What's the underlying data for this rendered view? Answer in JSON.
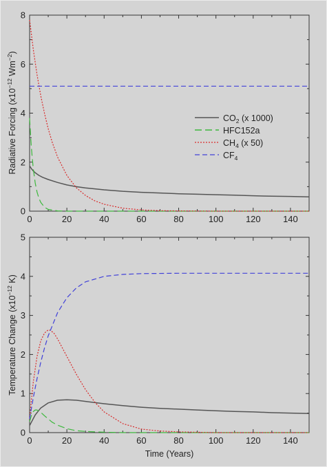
{
  "colors": {
    "background": "#d4d4d4",
    "co2": "#555555",
    "hfc152a": "#3cb83c",
    "ch4": "#d92a2a",
    "cf4": "#4040d8"
  },
  "legend": {
    "co2": {
      "main": "CO",
      "sub": "2",
      "tail": " (x 1000)"
    },
    "hfc152a": {
      "main": "HFC152a",
      "sub": "",
      "tail": ""
    },
    "ch4": {
      "main": "CH",
      "sub": "4",
      "tail": " (x 50)"
    },
    "cf4": {
      "main": "CF",
      "sub": "4",
      "tail": ""
    }
  },
  "chart_data": [
    {
      "type": "line",
      "ylabel_prefix": "Radiative Forcing (x10",
      "ylabel_exp1": "−12",
      "ylabel_mid": " Wm",
      "ylabel_exp2": "−2",
      "ylabel_suffix": ")",
      "xlabel": "",
      "xlim": [
        0,
        150
      ],
      "ylim": [
        0,
        8
      ],
      "xticks": [
        "0",
        "20",
        "40",
        "60",
        "80",
        "100",
        "120",
        "140"
      ],
      "yticks": [
        "0",
        "2",
        "4",
        "6",
        "8"
      ],
      "legend_position": "middle-right",
      "series": [
        {
          "key": "co2",
          "name": "CO2 (x 1000)",
          "dash": "none",
          "x": [
            0,
            1,
            2,
            3,
            5,
            7,
            10,
            15,
            20,
            25,
            30,
            40,
            50,
            60,
            70,
            80,
            90,
            100,
            110,
            120,
            130,
            140,
            150
          ],
          "y": [
            1.85,
            1.73,
            1.64,
            1.57,
            1.46,
            1.38,
            1.29,
            1.17,
            1.07,
            1.0,
            0.95,
            0.87,
            0.81,
            0.77,
            0.74,
            0.71,
            0.69,
            0.67,
            0.65,
            0.63,
            0.61,
            0.6,
            0.58
          ]
        },
        {
          "key": "hfc152a",
          "name": "HFC152a",
          "dash": "10,5",
          "x": [
            0,
            0.5,
            1,
            1.5,
            2,
            3,
            4,
            5,
            6,
            8,
            10,
            15,
            20,
            40,
            60,
            80,
            100,
            150
          ],
          "y": [
            3.8,
            3.1,
            2.55,
            2.1,
            1.72,
            1.16,
            0.78,
            0.53,
            0.36,
            0.16,
            0.07,
            0.01,
            0.0,
            0.0,
            0.0,
            0.0,
            0.0,
            0.0
          ]
        },
        {
          "key": "ch4",
          "name": "CH4 (x 50)",
          "dash": "2,2",
          "x": [
            0,
            2,
            4,
            6,
            8,
            10,
            12,
            15,
            20,
            25,
            30,
            35,
            40,
            50,
            60,
            70,
            80,
            100,
            120,
            150
          ],
          "y": [
            7.8,
            6.59,
            5.57,
            4.71,
            3.98,
            3.36,
            2.84,
            2.21,
            1.46,
            0.96,
            0.64,
            0.42,
            0.28,
            0.12,
            0.05,
            0.02,
            0.01,
            0.0,
            0.0,
            0.0
          ]
        },
        {
          "key": "cf4",
          "name": "CF4",
          "dash": "7,4",
          "x": [
            0,
            150
          ],
          "y": [
            5.1,
            5.1
          ]
        }
      ]
    },
    {
      "type": "line",
      "ylabel_prefix": "Temperature Change (x10",
      "ylabel_exp1": "−12",
      "ylabel_mid": " K",
      "ylabel_exp2": "",
      "ylabel_suffix": ")",
      "xlabel": "Time (Years)",
      "xlim": [
        0,
        150
      ],
      "ylim": [
        0,
        5
      ],
      "xticks": [
        "0",
        "20",
        "40",
        "60",
        "80",
        "100",
        "120",
        "140"
      ],
      "yticks": [
        "0",
        "1",
        "2",
        "3",
        "4",
        "5"
      ],
      "series": [
        {
          "key": "co2",
          "dash": "none",
          "x": [
            0,
            3,
            6,
            10,
            15,
            20,
            25,
            30,
            40,
            50,
            60,
            70,
            80,
            90,
            100,
            110,
            120,
            130,
            140,
            150
          ],
          "y": [
            0.18,
            0.45,
            0.63,
            0.76,
            0.83,
            0.84,
            0.83,
            0.8,
            0.74,
            0.69,
            0.65,
            0.62,
            0.6,
            0.58,
            0.56,
            0.54,
            0.53,
            0.51,
            0.5,
            0.49
          ]
        },
        {
          "key": "hfc152a",
          "dash": "10,5",
          "x": [
            0,
            1,
            2,
            3,
            4,
            6,
            8,
            10,
            12,
            15,
            20,
            25,
            30,
            40,
            50,
            60,
            80,
            150
          ],
          "y": [
            0.28,
            0.44,
            0.54,
            0.58,
            0.58,
            0.52,
            0.43,
            0.35,
            0.27,
            0.19,
            0.1,
            0.05,
            0.03,
            0.01,
            0.0,
            0.0,
            0.0,
            0.0
          ]
        },
        {
          "key": "ch4",
          "dash": "2,2",
          "x": [
            0,
            1,
            2,
            4,
            6,
            8,
            10,
            11,
            13,
            15,
            20,
            25,
            30,
            35,
            40,
            50,
            60,
            70,
            80,
            100,
            150
          ],
          "y": [
            0.35,
            0.85,
            1.3,
            1.95,
            2.35,
            2.55,
            2.63,
            2.62,
            2.55,
            2.4,
            1.95,
            1.5,
            1.1,
            0.78,
            0.53,
            0.23,
            0.09,
            0.04,
            0.02,
            0.0,
            0.0
          ]
        },
        {
          "key": "cf4",
          "dash": "7,4",
          "x": [
            0,
            2,
            4,
            6,
            8,
            10,
            15,
            20,
            25,
            30,
            40,
            50,
            60,
            80,
            100,
            150
          ],
          "y": [
            0.35,
            0.9,
            1.38,
            1.8,
            2.17,
            2.48,
            3.07,
            3.45,
            3.7,
            3.86,
            4.0,
            4.05,
            4.07,
            4.08,
            4.08,
            4.08
          ]
        }
      ]
    }
  ]
}
